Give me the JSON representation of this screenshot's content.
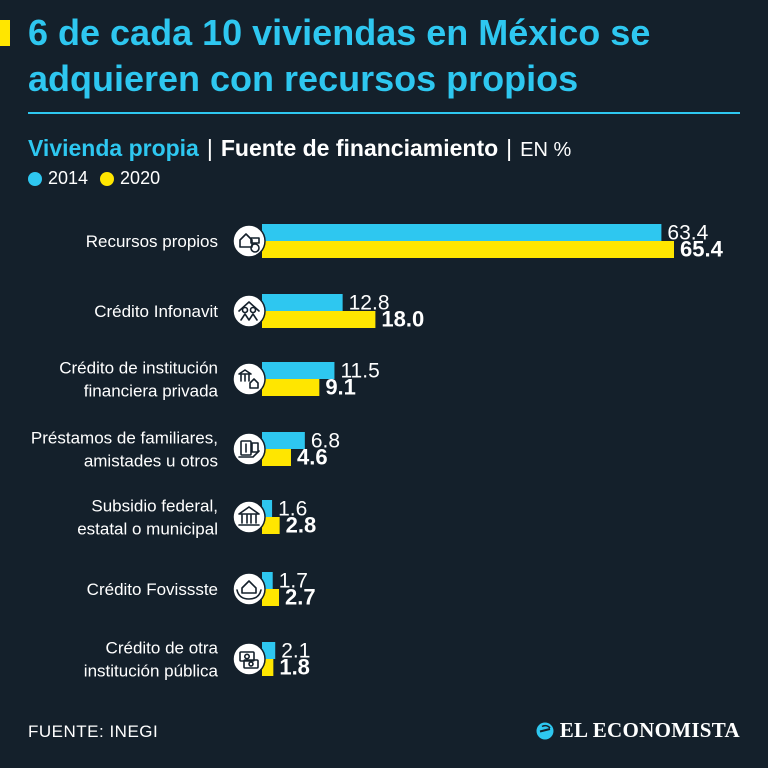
{
  "header": {
    "title": "6 de cada 10 viviendas en México se adquieren con recursos propios",
    "subtitle_main": "Vivienda propia",
    "separator": "|",
    "subtitle_secondary": "Fuente de financiamiento",
    "subtitle_unit": "EN %"
  },
  "legend": [
    {
      "label": "2014",
      "color": "#2ec7f0"
    },
    {
      "label": "2020",
      "color": "#ffe600"
    }
  ],
  "chart_data": {
    "type": "bar",
    "orientation": "horizontal",
    "title": "Fuente de financiamiento",
    "xlabel": "",
    "ylabel": "",
    "unit": "%",
    "xlim": [
      0,
      70
    ],
    "categories": [
      {
        "lines": [
          "Recursos propios"
        ],
        "icon": "house-money-icon"
      },
      {
        "lines": [
          "Crédito Infonavit"
        ],
        "icon": "infonavit-icon"
      },
      {
        "lines": [
          "Crédito de institución",
          "financiera privada"
        ],
        "icon": "bank-house-icon"
      },
      {
        "lines": [
          "Préstamos de familiares,",
          "amistades u otros"
        ],
        "icon": "cash-hand-icon"
      },
      {
        "lines": [
          "Subsidio federal,",
          "estatal o municipal"
        ],
        "icon": "government-building-icon"
      },
      {
        "lines": [
          "Crédito Fovissste"
        ],
        "icon": "fovissste-icon"
      },
      {
        "lines": [
          "Crédito de otra",
          "institución pública"
        ],
        "icon": "money-bills-icon"
      }
    ],
    "series": [
      {
        "name": "2014",
        "color": "#2ec7f0",
        "values": [
          63.4,
          12.8,
          11.5,
          6.8,
          1.6,
          1.7,
          2.1
        ]
      },
      {
        "name": "2020",
        "color": "#ffe600",
        "values": [
          65.4,
          18.0,
          9.1,
          4.6,
          2.8,
          2.7,
          1.8
        ]
      }
    ]
  },
  "footer": {
    "source": "FUENTE: INEGI",
    "brand": "EL ECONOMISTA"
  }
}
